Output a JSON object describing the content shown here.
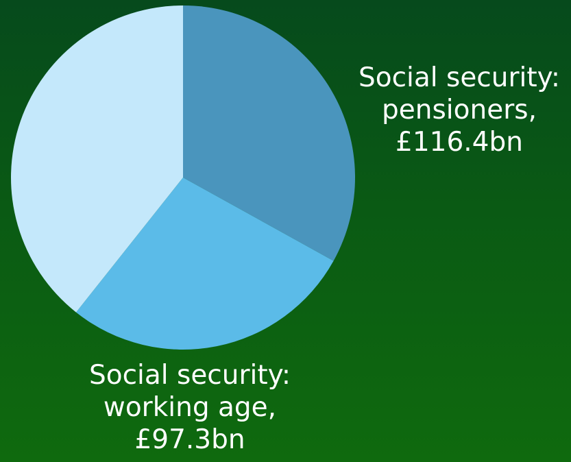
{
  "chart_data": {
    "type": "pie",
    "slices": [
      {
        "label_lines": [
          "Social security:",
          "pensioners,",
          "£116.4bn"
        ],
        "value": 116.4,
        "color": "#4a95bd"
      },
      {
        "label_lines": [
          "Social security:",
          "working age,",
          "£97.3bn"
        ],
        "value": 97.3,
        "color": "#5bbbe8"
      },
      {
        "label_lines": [],
        "value": 138.5,
        "color": "#c4e8fb"
      }
    ]
  }
}
